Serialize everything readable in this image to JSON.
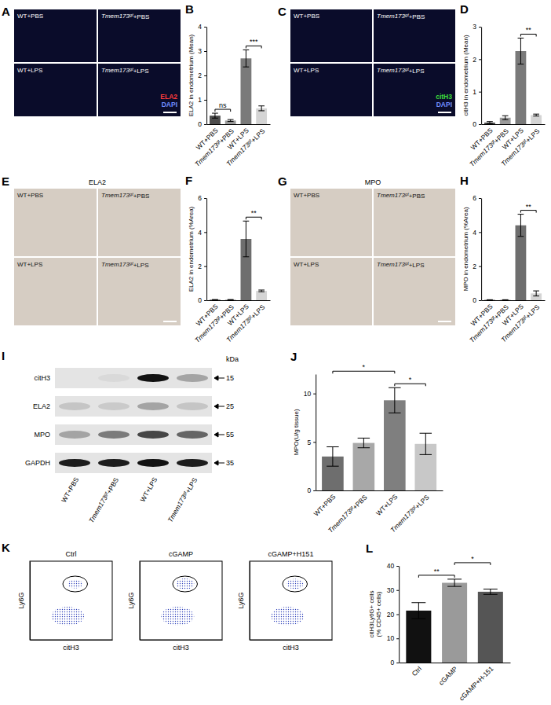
{
  "chart_data": [
    {
      "panel": "B",
      "type": "bar",
      "y_label": "ELA2 in endometrium (Mean)",
      "categories": [
        "WT+PBS",
        "Tmem173gt+PBS",
        "WT+LPS",
        "Tmem173gt+LPS"
      ],
      "values": [
        0.35,
        0.15,
        2.7,
        0.65
      ],
      "errors": [
        0.1,
        0.04,
        0.35,
        0.1
      ],
      "colors": [
        "#4d4d4d",
        "#9a9a9a",
        "#7a7a7a",
        "#d4d4d4"
      ],
      "ylim": [
        0,
        4
      ],
      "yticks": [
        0,
        1,
        2,
        3,
        4
      ],
      "annotations": [
        {
          "from": 0,
          "to": 1,
          "text": "ns"
        },
        {
          "from": 2,
          "to": 3,
          "text": "***"
        }
      ]
    },
    {
      "panel": "D",
      "type": "bar",
      "y_label": "citH3 in endometrium (Mean)",
      "categories": [
        "WT+PBS",
        "Tmem173gt+PBS",
        "WT+LPS",
        "Tmem173gt+LPS"
      ],
      "values": [
        0.05,
        0.2,
        2.25,
        0.28
      ],
      "errors": [
        0.03,
        0.06,
        0.4,
        0.03
      ],
      "colors": [
        "#4d4d4d",
        "#9a9a9a",
        "#7a7a7a",
        "#d4d4d4"
      ],
      "ylim": [
        0,
        3
      ],
      "yticks": [
        0,
        1,
        2,
        3
      ],
      "annotations": [
        {
          "from": 2,
          "to": 3,
          "text": "**"
        }
      ]
    },
    {
      "panel": "F",
      "type": "bar",
      "y_label": "ELA2 in endometrium (%Area)",
      "categories": [
        "WT+PBS",
        "Tmem173gt+PBS",
        "WT+LPS",
        "Tmem173gt+LPS"
      ],
      "values": [
        0.03,
        0.03,
        3.6,
        0.55
      ],
      "errors": [
        0.01,
        0.01,
        1.05,
        0.05
      ],
      "colors": [
        "#4d4d4d",
        "#9a9a9a",
        "#6e6e6e",
        "#d4d4d4"
      ],
      "ylim": [
        0,
        6
      ],
      "yticks": [
        0,
        2,
        4,
        6
      ],
      "annotations": [
        {
          "from": 2,
          "to": 3,
          "text": "**"
        }
      ]
    },
    {
      "panel": "H",
      "type": "bar",
      "y_label": "MPO in endometrium (%Area)",
      "categories": [
        "WT+PBS",
        "Tmem173gt+PBS",
        "WT+LPS",
        "Tmem173gt+LPS"
      ],
      "values": [
        0.02,
        0.02,
        4.4,
        0.4
      ],
      "errors": [
        0.01,
        0.01,
        0.65,
        0.15
      ],
      "colors": [
        "#4d4d4d",
        "#9a9a9a",
        "#6e6e6e",
        "#d4d4d4"
      ],
      "ylim": [
        0,
        6
      ],
      "yticks": [
        0,
        2,
        4,
        6
      ],
      "annotations": [
        {
          "from": 2,
          "to": 3,
          "text": "**"
        }
      ]
    },
    {
      "panel": "J",
      "type": "bar",
      "y_label": "MPO(U/g tissue)",
      "categories": [
        "WT+PBS",
        "Tmem173gt+PBS",
        "WT+LPS",
        "Tmem173gt+LPS"
      ],
      "values": [
        3.5,
        4.9,
        9.3,
        4.8
      ],
      "errors": [
        1.0,
        0.5,
        1.3,
        1.1
      ],
      "colors": [
        "#6e6e6e",
        "#a8a8a8",
        "#7f7f7f",
        "#c8c8c8"
      ],
      "ylim": [
        0,
        12
      ],
      "yticks": [
        0,
        5,
        10
      ],
      "annotations": [
        {
          "from": 0,
          "to": 2,
          "text": "*"
        },
        {
          "from": 2,
          "to": 3,
          "text": "*"
        }
      ]
    },
    {
      "panel": "L",
      "type": "bar",
      "y_label": "citH3Ly6G+ cells (% CD45+ cells)",
      "categories": [
        "Ctrl",
        "cGAMP",
        "cGAMP+H-151"
      ],
      "values": [
        21.5,
        33,
        29.3
      ],
      "errors": [
        3.3,
        1.5,
        1.1
      ],
      "colors": [
        "#111111",
        "#9a9a9a",
        "#555555"
      ],
      "ylim": [
        0,
        40
      ],
      "yticks": [
        0,
        10,
        20,
        30,
        40
      ],
      "annotations": [
        {
          "from": 0,
          "to": 1,
          "text": "**"
        },
        {
          "from": 1,
          "to": 2,
          "text": "*"
        }
      ]
    }
  ],
  "image_panels": [
    {
      "panel": "A",
      "kind": "fluorescence",
      "labels": [
        "WT+PBS",
        "Tmem173gt+PBS",
        "WT+LPS",
        "Tmem173gt+LPS"
      ],
      "stains": [
        {
          "text": "ELA2",
          "color": "#ff3b3b"
        },
        {
          "text": "DAPI",
          "color": "#6f8cff"
        }
      ]
    },
    {
      "panel": "C",
      "kind": "fluorescence",
      "labels": [
        "WT+PBS",
        "Tmem173gt+PBS",
        "WT+LPS",
        "Tmem173gt+LPS"
      ],
      "stains": [
        {
          "text": "citH3",
          "color": "#3ddc3d"
        },
        {
          "text": "DAPI",
          "color": "#6f8cff"
        }
      ]
    },
    {
      "panel": "E",
      "kind": "histology",
      "title": "ELA2",
      "labels": [
        "WT+PBS",
        "Tmem173gt+PBS",
        "WT+LPS",
        "Tmem173gt+LPS"
      ]
    },
    {
      "panel": "G",
      "kind": "histology",
      "title": "MPO",
      "labels": [
        "WT+PBS",
        "Tmem173gt+PBS",
        "WT+LPS",
        "Tmem173gt+LPS"
      ]
    }
  ],
  "blot": {
    "panel": "I",
    "kda_label": "kDa",
    "lanes": [
      "WT+PBS",
      "Tmem173gt+PBS",
      "WT+LPS",
      "Tmem173gt+LPS"
    ],
    "rows": [
      {
        "label": "citH3",
        "kda": 15,
        "band_intensity": [
          0,
          0.05,
          1,
          0.3
        ]
      },
      {
        "label": "ELA2",
        "kda": 25,
        "band_intensity": [
          0.15,
          0.12,
          0.3,
          0.15
        ]
      },
      {
        "label": "MPO",
        "kda": 55,
        "band_intensity": [
          0.3,
          0.5,
          0.75,
          0.6
        ]
      },
      {
        "label": "GAPDH",
        "kda": 35,
        "band_intensity": [
          0.95,
          0.95,
          1,
          0.95
        ]
      }
    ]
  },
  "flow_cytometry": {
    "panel": "K",
    "type": "scatter",
    "x_label": "citH3",
    "y_label": "Ly6G",
    "xlim": [
      0,
      5
    ],
    "ylim": [
      0,
      5
    ],
    "tick_labels": false,
    "plots": [
      {
        "title": "Ctrl",
        "gate": {
          "x": 2.75,
          "y": 3.55,
          "rx": 0.75,
          "ry": 0.5
        },
        "clusters": [
          {
            "x": 2.3,
            "y": 1.5,
            "rx": 1.0,
            "ry": 0.6
          },
          {
            "x": 2.75,
            "y": 3.55,
            "rx": 0.45,
            "ry": 0.28
          }
        ]
      },
      {
        "title": "cGAMP",
        "gate": {
          "x": 2.75,
          "y": 3.55,
          "rx": 0.75,
          "ry": 0.5
        },
        "clusters": [
          {
            "x": 2.3,
            "y": 1.5,
            "rx": 1.0,
            "ry": 0.6
          },
          {
            "x": 2.75,
            "y": 3.55,
            "rx": 0.55,
            "ry": 0.35
          }
        ]
      },
      {
        "title": "cGAMP+H151",
        "gate": {
          "x": 2.75,
          "y": 3.55,
          "rx": 0.75,
          "ry": 0.5
        },
        "clusters": [
          {
            "x": 2.3,
            "y": 1.5,
            "rx": 1.0,
            "ry": 0.6
          },
          {
            "x": 2.75,
            "y": 3.55,
            "rx": 0.52,
            "ry": 0.32
          }
        ]
      }
    ]
  }
}
